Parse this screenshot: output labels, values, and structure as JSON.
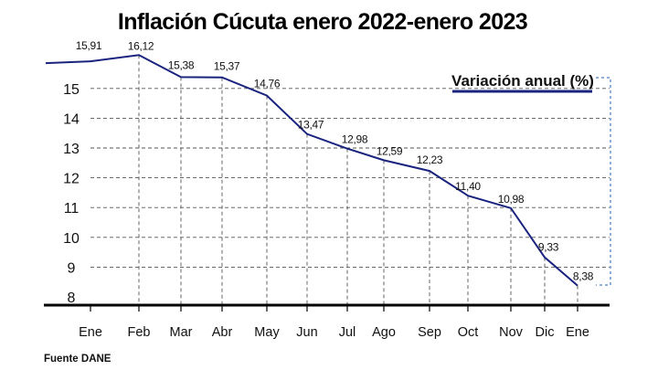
{
  "chart_data": {
    "type": "line",
    "title": "Inflación Cúcuta enero 2022-enero 2023",
    "legend": "Variación anual (%)",
    "source": "Fuente DANE",
    "categories": [
      "Ene",
      "Feb",
      "Mar",
      "Abr",
      "May",
      "Jun",
      "Jul",
      "Ago",
      "Sep",
      "Oct",
      "Nov",
      "Dic",
      "Ene"
    ],
    "series": [
      {
        "name": "Variación anual (%)",
        "values": [
          15.91,
          16.12,
          15.38,
          15.37,
          14.76,
          13.47,
          12.98,
          12.59,
          12.23,
          11.4,
          10.98,
          9.33,
          8.38
        ],
        "labels": [
          "15,91",
          "16,12",
          "15,38",
          "15,37",
          "14,76",
          "13,47",
          "12,98",
          "12,59",
          "12,23",
          "11,40",
          "10,98",
          "9,33",
          "8,38"
        ]
      }
    ],
    "yticks": [
      "8",
      "9",
      "10",
      "11",
      "12",
      "13",
      "14",
      "15"
    ],
    "ylim": [
      8,
      16.3
    ],
    "grid": true,
    "legend_position": "top-right",
    "line_color": "#1a237e"
  }
}
